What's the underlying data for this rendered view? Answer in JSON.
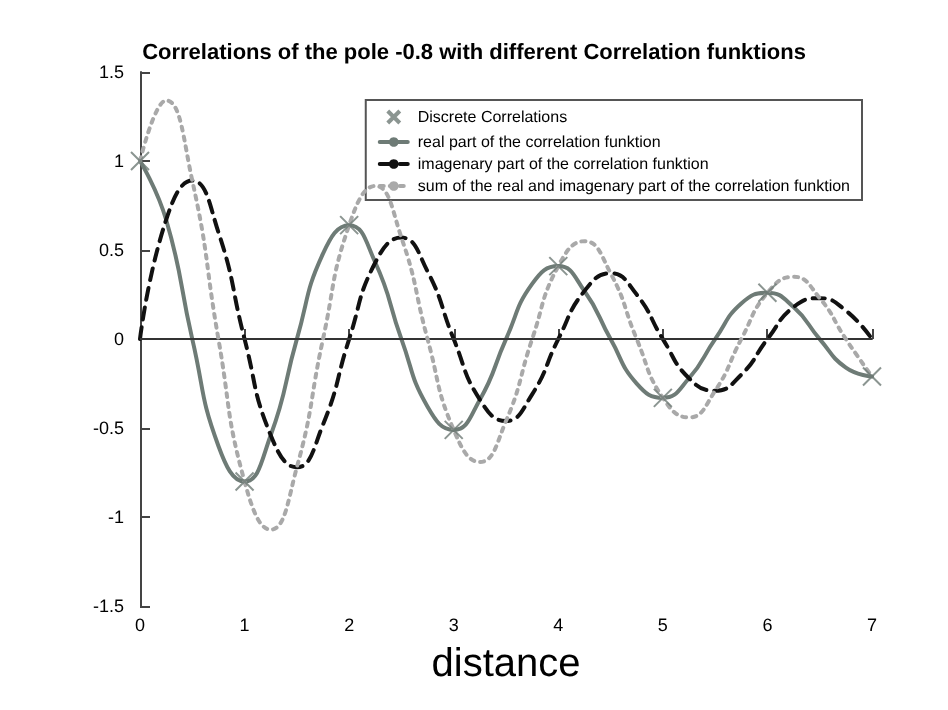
{
  "chart_data": {
    "type": "line",
    "title": "Correlations of the pole -0.8 with different Correlation funktions",
    "xlabel": "distance",
    "x": [
      0,
      0.25,
      0.5,
      0.75,
      1,
      1.25,
      1.5,
      1.75,
      2,
      2.25,
      2.5,
      2.75,
      3,
      3.25,
      3.5,
      3.75,
      4,
      4.25,
      4.5,
      4.75,
      5,
      5.25,
      5.5,
      5.75,
      6,
      6.25,
      6.5,
      6.75,
      7
    ],
    "series": [
      {
        "name": "Discrete Correlations",
        "type": "scatter",
        "marker": "cross",
        "color": "#6e7b76",
        "x": [
          0,
          1,
          2,
          3,
          4,
          5,
          6,
          7
        ],
        "values": [
          1,
          -0.8,
          0.64,
          -0.51,
          0.41,
          -0.33,
          0.26,
          -0.21
        ]
      },
      {
        "name": "real part of the correlation funktion",
        "color": "#6e7b76",
        "line_style": "solid",
        "values": [
          1,
          0.67,
          0,
          -0.6,
          -0.8,
          -0.54,
          0,
          0.48,
          0.64,
          0.43,
          0,
          -0.38,
          -0.51,
          -0.34,
          0,
          0.31,
          0.41,
          0.27,
          0,
          -0.25,
          -0.33,
          -0.22,
          0,
          0.2,
          0.26,
          0.18,
          0,
          -0.16,
          -0.21
        ]
      },
      {
        "name": "imagenary part of the correlation funktion",
        "color": "#111111",
        "line_style": "dashed",
        "values": [
          0,
          0.67,
          0.89,
          0.6,
          0,
          -0.54,
          -0.72,
          -0.48,
          0,
          0.43,
          0.57,
          0.38,
          0,
          -0.34,
          -0.46,
          -0.31,
          0,
          0.27,
          0.37,
          0.25,
          0,
          -0.22,
          -0.29,
          -0.2,
          0,
          0.18,
          0.23,
          0.16,
          0
        ]
      },
      {
        "name": "sum of the real and imagenary part of the correlation funktion",
        "color": "#a9a9a9",
        "line_style": "dotted",
        "values": [
          1,
          1.34,
          0.89,
          0,
          -0.8,
          -1.07,
          -0.72,
          0,
          0.64,
          0.86,
          0.57,
          0,
          -0.51,
          -0.69,
          -0.46,
          0,
          0.41,
          0.55,
          0.37,
          0,
          -0.33,
          -0.44,
          -0.29,
          0,
          0.26,
          0.35,
          0.23,
          0,
          -0.21
        ]
      }
    ],
    "xlim": [
      0,
      7
    ],
    "xticks": [
      0,
      1,
      2,
      3,
      4,
      5,
      6,
      7
    ],
    "ylim": [
      -1.5,
      1.5
    ],
    "yticks": [
      -1.5,
      -1,
      -0.5,
      0,
      0.5,
      1,
      1.5
    ],
    "ref_lines": [
      {
        "axis": "y",
        "value": 0,
        "color": "#333333",
        "line_style": "solid"
      }
    ],
    "legend": "top right",
    "grid": false,
    "marker": "none"
  }
}
